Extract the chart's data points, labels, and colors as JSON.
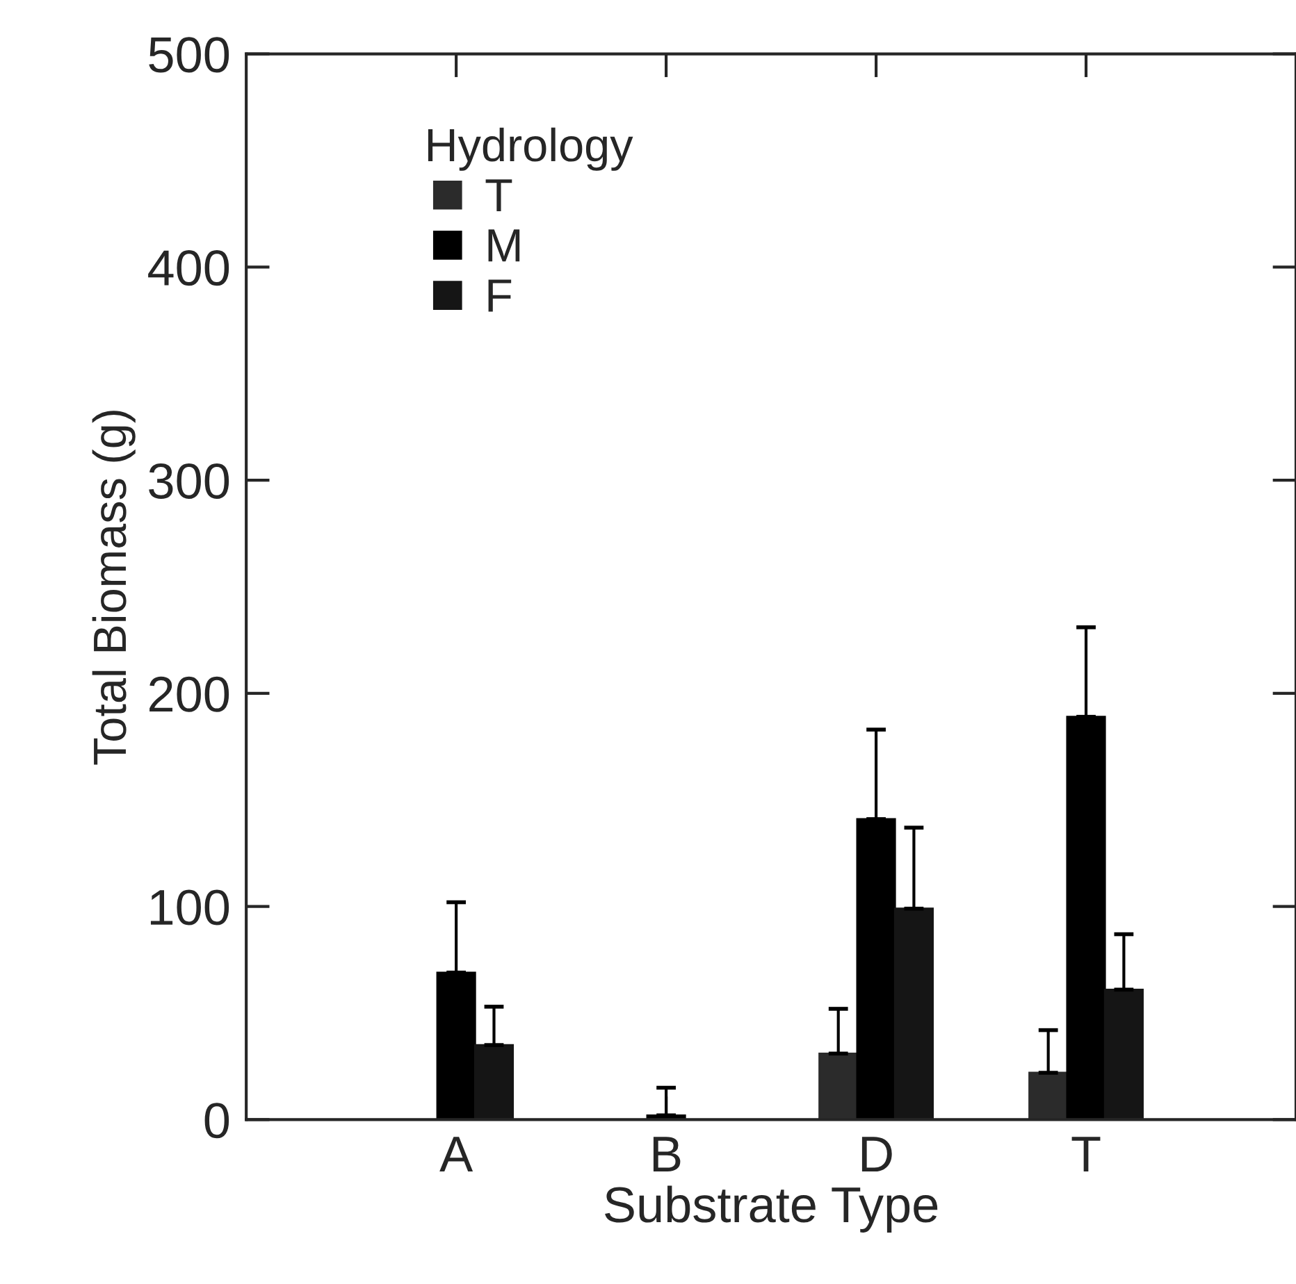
{
  "chart_data": {
    "type": "bar",
    "xlabel": "Substrate Type",
    "ylabel": "Total Biomass (g)",
    "legend_title": "Hydrology",
    "categories": [
      "A",
      "B",
      "D",
      "T"
    ],
    "series": [
      {
        "name": "T",
        "color": "#2b2b2b",
        "values": [
          null,
          null,
          31,
          22
        ],
        "errors": [
          null,
          null,
          [
            31,
            52
          ],
          [
            22,
            42
          ]
        ]
      },
      {
        "name": "M",
        "color": "#000000",
        "values": [
          69,
          2,
          141,
          189
        ],
        "errors": [
          [
            69,
            102
          ],
          [
            2,
            15
          ],
          [
            141,
            183
          ],
          [
            189,
            231
          ]
        ]
      },
      {
        "name": "F",
        "color": "#151515",
        "values": [
          35,
          null,
          99,
          61
        ],
        "errors": [
          [
            35,
            53
          ],
          null,
          [
            99,
            137
          ],
          [
            61,
            87
          ]
        ]
      }
    ],
    "ylim": [
      0,
      500
    ],
    "yticks": [
      0,
      100,
      200,
      300,
      400,
      500
    ],
    "grid": false,
    "legend": "top left",
    "marker": "square"
  }
}
